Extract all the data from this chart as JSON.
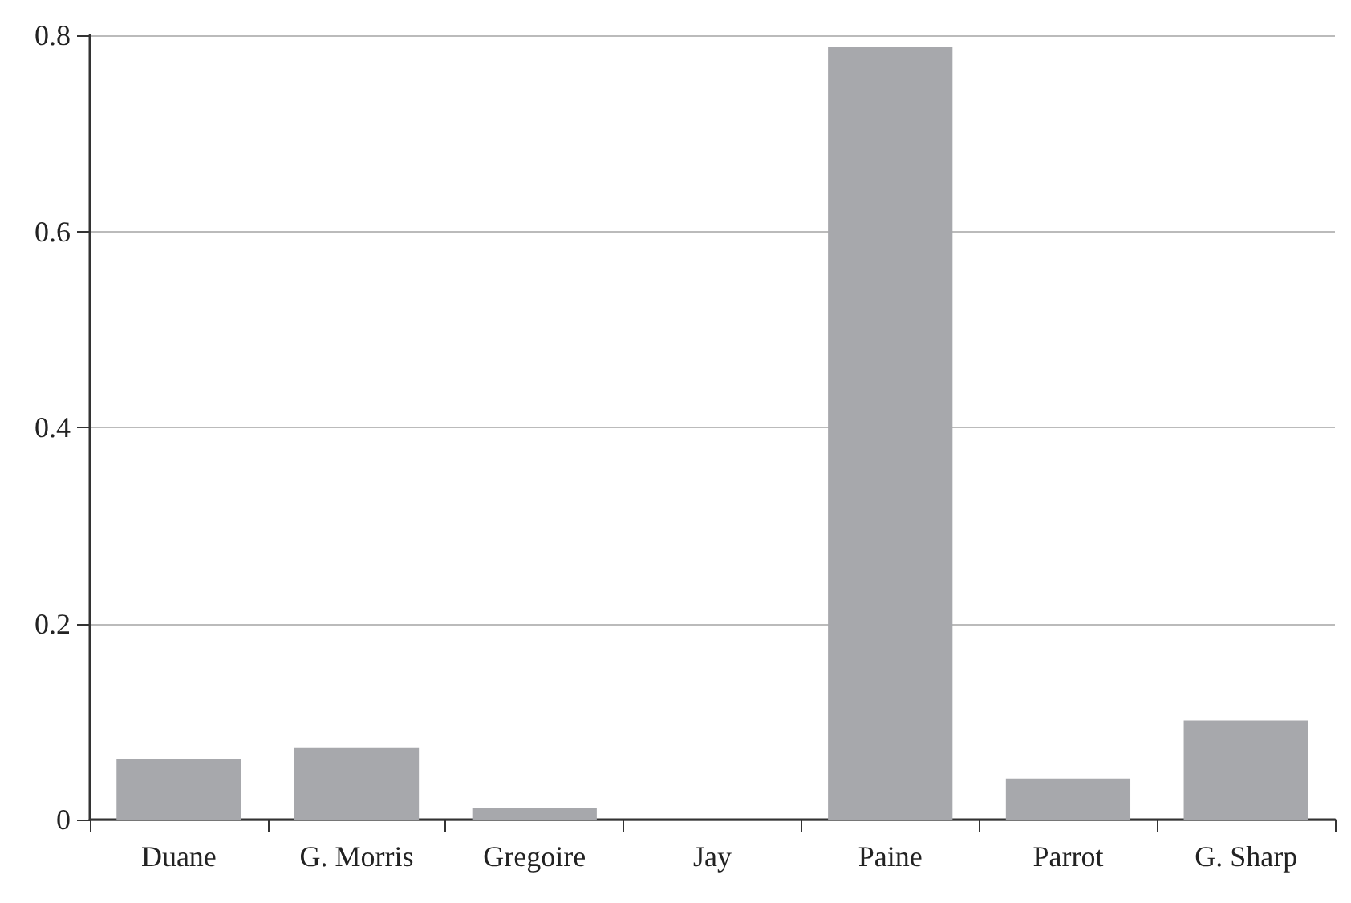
{
  "chart_data": {
    "type": "bar",
    "categories": [
      "Duane",
      "G. Morris",
      "Gregoire",
      "Jay",
      "Paine",
      "Parrot",
      "G. Sharp"
    ],
    "values": [
      0.062,
      0.073,
      0.012,
      0,
      0.788,
      0.042,
      0.101
    ],
    "color": "#a7a8ac",
    "ylim": [
      0,
      0.8
    ],
    "yticks": [
      0,
      0.2,
      0.4,
      0.6,
      0.8
    ],
    "grid": "y"
  }
}
